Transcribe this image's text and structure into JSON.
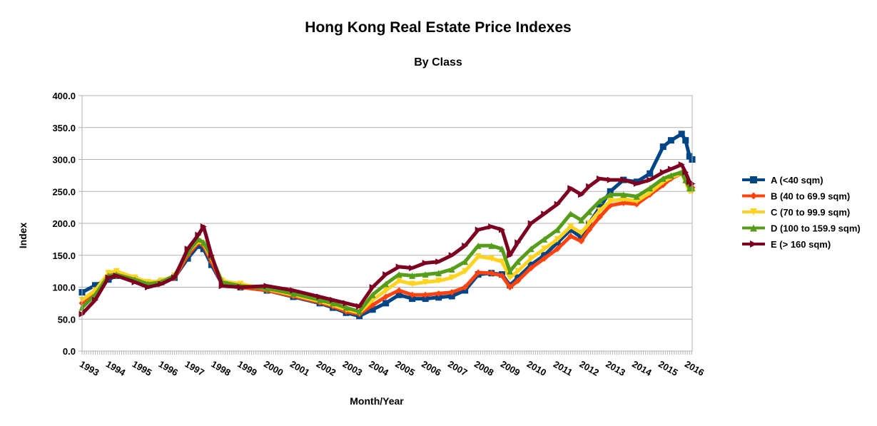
{
  "chart_data": {
    "type": "line",
    "title": "Hong Kong Real Estate Price Indexes",
    "subtitle": "By Class",
    "xlabel": "Month/Year",
    "ylabel": "Index",
    "ylim": [
      0,
      400
    ],
    "xlim": [
      1993.0,
      2016.1
    ],
    "y_ticks": [
      "0.0",
      "50.0",
      "100.0",
      "150.0",
      "200.0",
      "250.0",
      "300.0",
      "350.0",
      "400.0"
    ],
    "x_tick_labels": [
      "1993",
      "1994",
      "1995",
      "1996",
      "1997",
      "1998",
      "1999",
      "2000",
      "2001",
      "2002",
      "2003",
      "2004",
      "2005",
      "2006",
      "2007",
      "2008",
      "2009",
      "2010",
      "2011",
      "2012",
      "2013",
      "2014",
      "2015",
      "2016"
    ],
    "grid": "horizontal",
    "legend_position": "right",
    "series": [
      {
        "name": "A (<40 sqm)",
        "color": "#004586",
        "marker": "square",
        "x": [
          1993.0,
          1993.5,
          1994.0,
          1994.3,
          1995.0,
          1995.5,
          1996.0,
          1996.5,
          1997.0,
          1997.4,
          1997.6,
          1997.9,
          1998.3,
          1999.0,
          2000.0,
          2001.0,
          2002.0,
          2002.5,
          2003.0,
          2003.5,
          2004.0,
          2004.5,
          2005.0,
          2005.5,
          2006.0,
          2006.5,
          2007.0,
          2007.5,
          2008.0,
          2008.5,
          2008.9,
          2009.2,
          2009.5,
          2010.0,
          2010.5,
          2011.0,
          2011.5,
          2011.9,
          2012.2,
          2012.6,
          2013.0,
          2013.5,
          2014.0,
          2014.5,
          2015.0,
          2015.3,
          2015.7,
          2015.85,
          2016.0,
          2016.1
        ],
        "values": [
          92,
          103,
          112,
          118,
          112,
          105,
          108,
          115,
          145,
          165,
          160,
          135,
          105,
          100,
          95,
          85,
          75,
          68,
          60,
          55,
          65,
          75,
          88,
          82,
          82,
          84,
          86,
          95,
          120,
          122,
          120,
          103,
          115,
          135,
          150,
          170,
          190,
          178,
          200,
          225,
          250,
          268,
          265,
          278,
          320,
          330,
          340,
          330,
          305,
          300
        ]
      },
      {
        "name": "B (40 to 69.9 sqm)",
        "color": "#ff420e",
        "marker": "diamond",
        "x": [
          1993.0,
          1993.5,
          1994.0,
          1994.3,
          1995.0,
          1995.5,
          1996.0,
          1996.5,
          1997.0,
          1997.4,
          1997.6,
          1997.9,
          1998.3,
          1999.0,
          2000.0,
          2001.0,
          2002.0,
          2002.5,
          2003.0,
          2003.5,
          2004.0,
          2004.5,
          2005.0,
          2005.5,
          2006.0,
          2006.5,
          2007.0,
          2007.5,
          2008.0,
          2008.5,
          2008.9,
          2009.2,
          2009.5,
          2010.0,
          2010.5,
          2011.0,
          2011.5,
          2011.9,
          2012.2,
          2012.6,
          2013.0,
          2013.5,
          2014.0,
          2014.5,
          2015.0,
          2015.3,
          2015.7,
          2015.85,
          2016.0,
          2016.1
        ],
        "values": [
          75,
          92,
          115,
          118,
          112,
          105,
          108,
          115,
          150,
          170,
          165,
          140,
          105,
          100,
          95,
          86,
          76,
          70,
          62,
          58,
          72,
          85,
          95,
          88,
          88,
          90,
          92,
          100,
          123,
          122,
          118,
          100,
          110,
          130,
          145,
          160,
          180,
          172,
          190,
          210,
          228,
          232,
          230,
          245,
          260,
          270,
          278,
          268,
          258,
          256
        ]
      },
      {
        "name": "C (70 to 99.9 sqm)",
        "color": "#ffd320",
        "marker": "triangle-down",
        "x": [
          1993.0,
          1993.5,
          1994.0,
          1994.3,
          1995.0,
          1995.5,
          1996.0,
          1996.5,
          1997.0,
          1997.4,
          1997.6,
          1997.9,
          1998.3,
          1999.0,
          2000.0,
          2001.0,
          2002.0,
          2002.5,
          2003.0,
          2003.5,
          2004.0,
          2004.5,
          2005.0,
          2005.5,
          2006.0,
          2006.5,
          2007.0,
          2007.5,
          2008.0,
          2008.5,
          2008.9,
          2009.2,
          2009.5,
          2010.0,
          2010.5,
          2011.0,
          2011.5,
          2011.9,
          2012.2,
          2012.6,
          2013.0,
          2013.5,
          2014.0,
          2014.5,
          2015.0,
          2015.3,
          2015.7,
          2015.85,
          2016.0,
          2016.1
        ],
        "values": [
          80,
          95,
          122,
          125,
          115,
          108,
          110,
          118,
          155,
          172,
          168,
          145,
          110,
          105,
          97,
          88,
          78,
          72,
          65,
          60,
          80,
          95,
          110,
          105,
          108,
          110,
          115,
          125,
          148,
          145,
          140,
          115,
          125,
          145,
          160,
          175,
          195,
          185,
          200,
          220,
          235,
          238,
          235,
          248,
          265,
          272,
          278,
          265,
          250,
          250
        ]
      },
      {
        "name": "D (100 to 159.9 sqm)",
        "color": "#579d1c",
        "marker": "triangle-up",
        "x": [
          1993.0,
          1993.5,
          1994.0,
          1994.3,
          1995.0,
          1995.5,
          1996.0,
          1996.5,
          1997.0,
          1997.4,
          1997.6,
          1997.9,
          1998.3,
          1999.0,
          2000.0,
          2001.0,
          2002.0,
          2002.5,
          2003.0,
          2003.5,
          2004.0,
          2004.5,
          2005.0,
          2005.5,
          2006.0,
          2006.5,
          2007.0,
          2007.5,
          2008.0,
          2008.5,
          2008.9,
          2009.2,
          2009.5,
          2010.0,
          2010.5,
          2011.0,
          2011.5,
          2011.9,
          2012.2,
          2012.6,
          2013.0,
          2013.5,
          2014.0,
          2014.5,
          2015.0,
          2015.3,
          2015.7,
          2015.85,
          2016.0,
          2016.1
        ],
        "values": [
          68,
          88,
          118,
          120,
          112,
          105,
          108,
          118,
          155,
          175,
          170,
          148,
          108,
          102,
          98,
          90,
          80,
          75,
          68,
          62,
          88,
          105,
          120,
          118,
          120,
          122,
          128,
          140,
          165,
          165,
          160,
          125,
          140,
          160,
          175,
          190,
          215,
          205,
          218,
          235,
          245,
          245,
          242,
          255,
          270,
          275,
          280,
          268,
          255,
          255
        ]
      },
      {
        "name": "E (> 160 sqm)",
        "color": "#7e0021",
        "marker": "triangle-right",
        "x": [
          1993.0,
          1993.5,
          1994.0,
          1994.3,
          1995.0,
          1995.5,
          1996.0,
          1996.5,
          1997.0,
          1997.4,
          1997.6,
          1997.9,
          1998.3,
          1999.0,
          2000.0,
          2001.0,
          2002.0,
          2002.5,
          2003.0,
          2003.5,
          2004.0,
          2004.5,
          2005.0,
          2005.5,
          2006.0,
          2006.5,
          2007.0,
          2007.5,
          2008.0,
          2008.5,
          2008.9,
          2009.2,
          2009.5,
          2010.0,
          2010.5,
          2011.0,
          2011.5,
          2011.9,
          2012.2,
          2012.6,
          2013.0,
          2013.5,
          2014.0,
          2014.5,
          2015.0,
          2015.3,
          2015.7,
          2015.85,
          2016.0,
          2016.1
        ],
        "values": [
          58,
          80,
          115,
          118,
          108,
          100,
          105,
          115,
          160,
          182,
          195,
          150,
          102,
          100,
          102,
          95,
          85,
          80,
          75,
          70,
          100,
          120,
          132,
          130,
          138,
          140,
          150,
          165,
          190,
          195,
          190,
          150,
          170,
          200,
          215,
          230,
          255,
          245,
          258,
          270,
          268,
          268,
          262,
          268,
          280,
          285,
          292,
          280,
          265,
          262
        ]
      }
    ]
  }
}
